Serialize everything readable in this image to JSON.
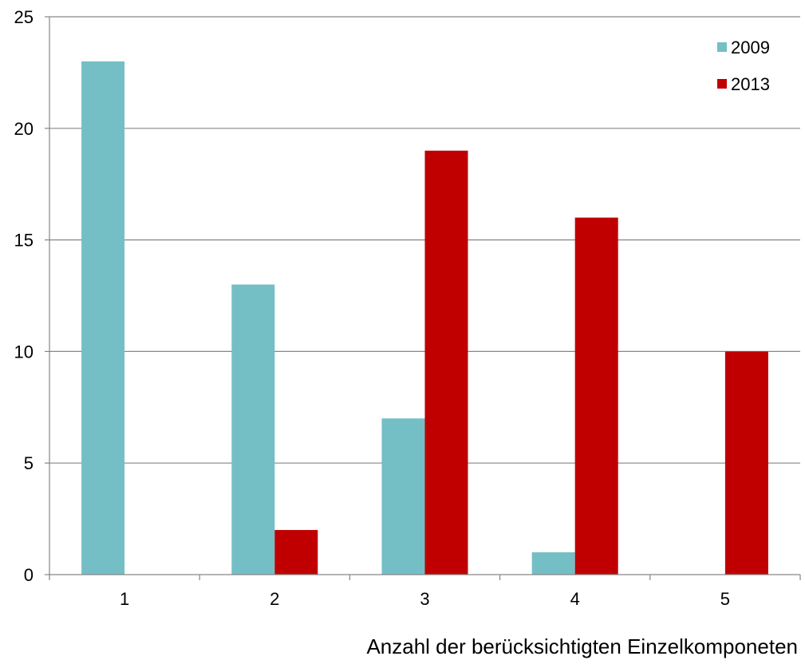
{
  "chart_data": {
    "type": "bar",
    "title": "",
    "xlabel": "Anzahl der berücksichtigten Einzelkomponeten",
    "ylabel": "",
    "categories": [
      "1",
      "2",
      "3",
      "4",
      "5"
    ],
    "series": [
      {
        "name": "2009",
        "values": [
          23,
          13,
          7,
          1,
          0
        ],
        "color": "#74bfc5"
      },
      {
        "name": "2013",
        "values": [
          0,
          2,
          19,
          16,
          10
        ],
        "color": "#c00000"
      }
    ],
    "ylim": [
      0,
      25
    ],
    "yticks": [
      "0",
      "5",
      "10",
      "15",
      "20",
      "25"
    ],
    "grid": "horizontal",
    "legend_position": "top-right"
  }
}
